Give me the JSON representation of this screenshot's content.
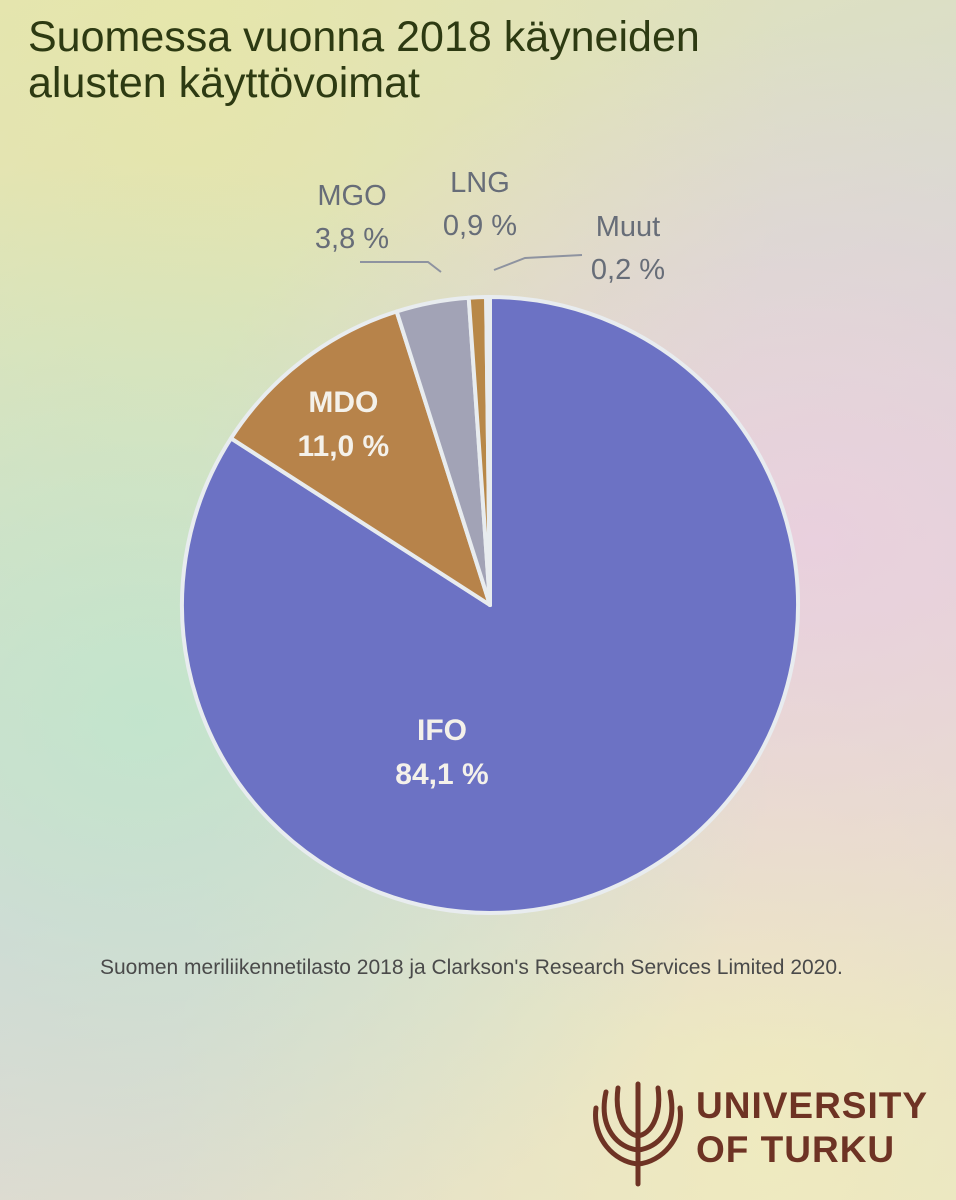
{
  "chart_data": {
    "type": "pie",
    "title": "Suomessa vuonna 2018 käyneiden alusten käyttövoimat",
    "slices": [
      {
        "label": "IFO",
        "value": 84.1,
        "value_text": "84,1 %",
        "color": "#6c72c4",
        "label_position": "inside"
      },
      {
        "label": "MDO",
        "value": 11.0,
        "value_text": "11,0 %",
        "color": "#b7834a",
        "label_position": "inside"
      },
      {
        "label": "MGO",
        "value": 3.8,
        "value_text": "3,8 %",
        "color": "#a2a3b6",
        "label_position": "outside"
      },
      {
        "label": "LNG",
        "value": 0.9,
        "value_text": "0,9 %",
        "color": "#b88848",
        "label_position": "outside"
      },
      {
        "label": "Muut",
        "value": 0.2,
        "value_text": "0,2 %",
        "color": "#8f9bb0",
        "label_position": "outside"
      }
    ],
    "start": "12 o'clock",
    "direction": "clockwise"
  },
  "source": "Suomen meriliikennetilasto 2018 ja Clarkson's Research Services Limited 2020.",
  "logo": {
    "line1": "UNIVERSITY",
    "line2": "OF TURKU",
    "color": "#6e3324"
  }
}
